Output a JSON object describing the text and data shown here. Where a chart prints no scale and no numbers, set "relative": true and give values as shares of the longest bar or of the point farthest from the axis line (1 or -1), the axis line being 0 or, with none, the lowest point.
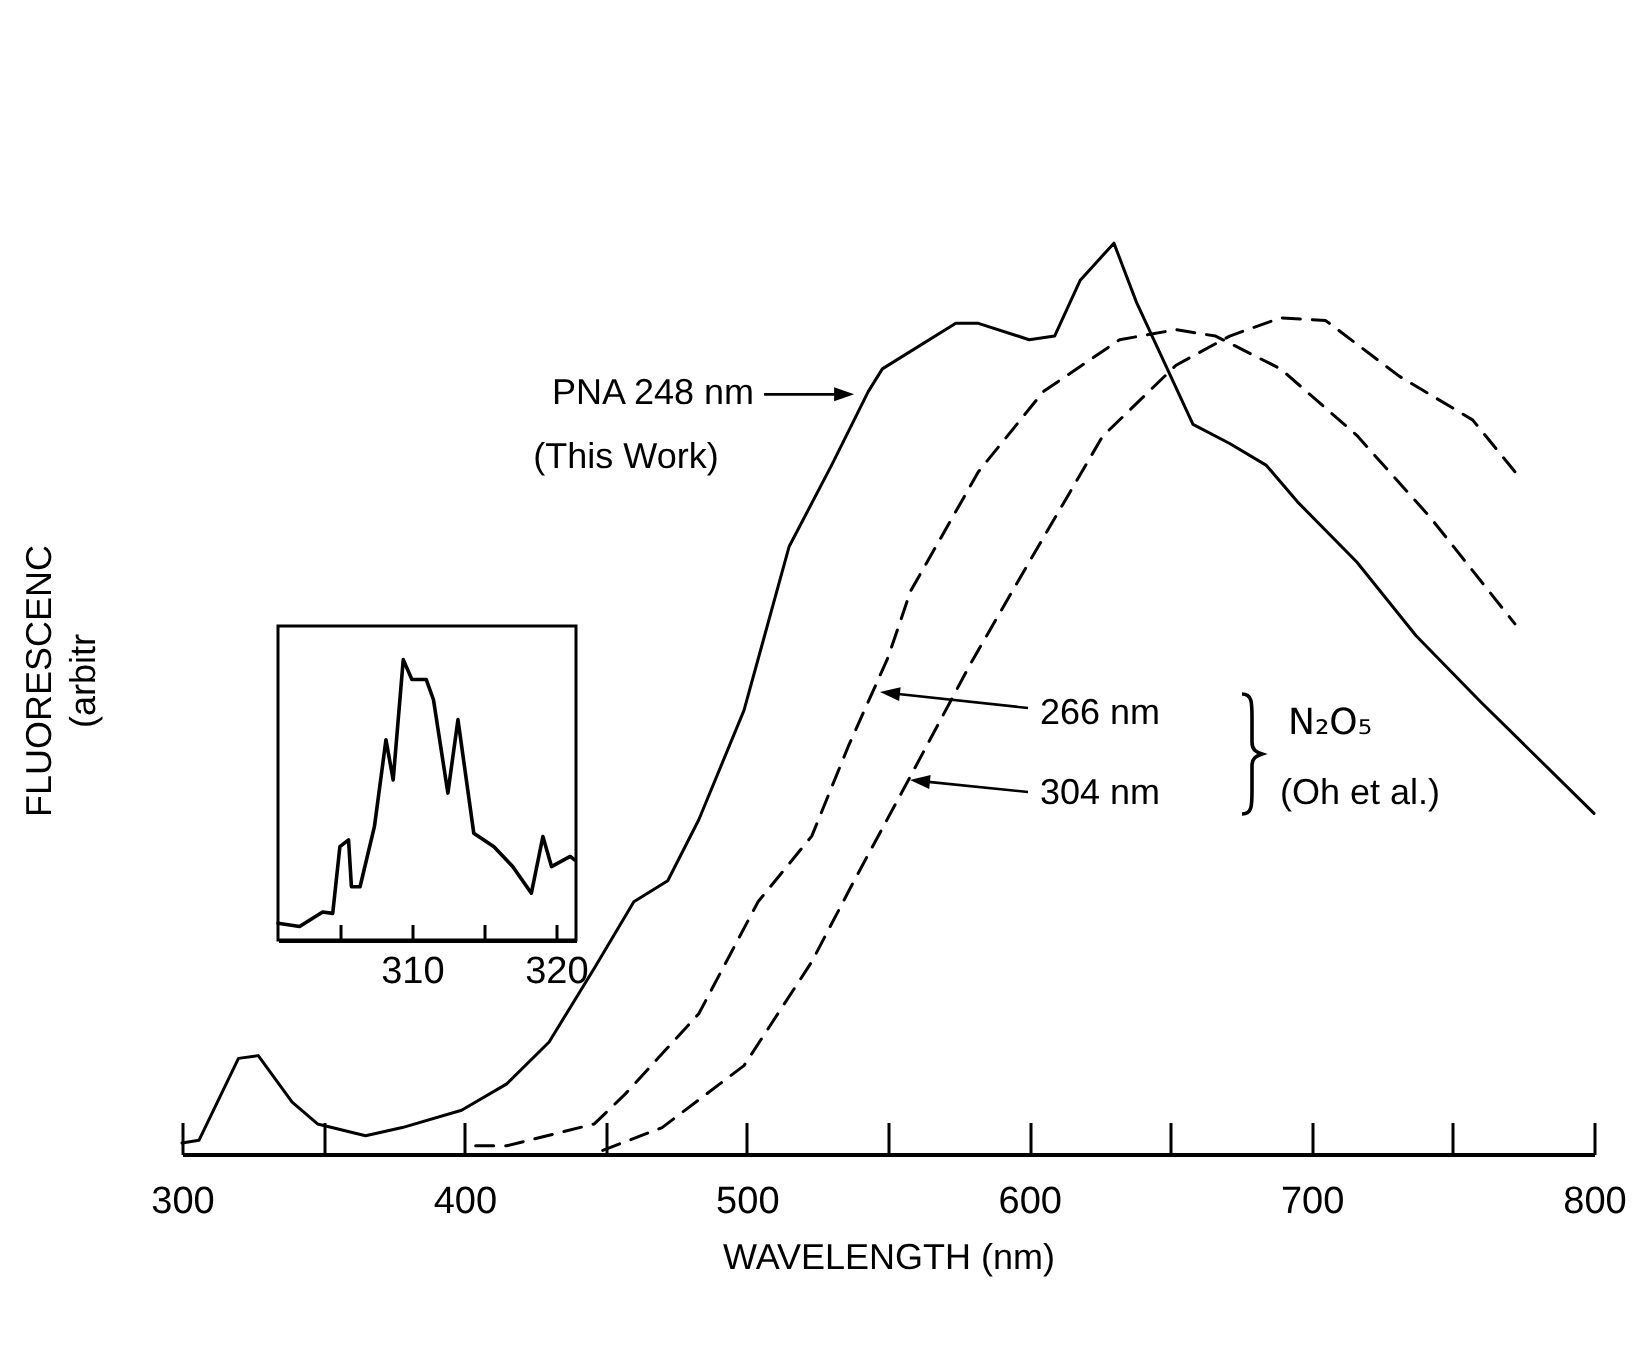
{
  "chart_data": [
    {
      "type": "line",
      "xlabel": "WAVELENGTH (nm)",
      "ylabel": "FLUORESCENC (arbitr",
      "relative": true,
      "xlim": [
        300,
        800
      ],
      "xticks": [
        300,
        {
          "value": 350,
          "label": null
        },
        400,
        {
          "value": 450,
          "label": null
        },
        500,
        {
          "value": 550,
          "label": null
        },
        600,
        {
          "value": 650,
          "label": null
        },
        700,
        {
          "value": 750,
          "label": null
        },
        800
      ],
      "series": [
        {
          "color": "#000000",
          "line_style": "solid",
          "x": [
            300,
            306,
            320,
            327,
            339,
            348,
            365,
            378,
            399,
            415,
            430,
            446,
            460,
            472,
            483,
            499,
            515,
            530,
            543,
            548,
            574,
            582,
            600,
            609,
            618,
            630,
            638,
            658,
            671,
            684,
            695,
            716,
            737,
            760,
            800
          ],
          "values": [
            0.012,
            0.015,
            0.105,
            0.108,
            0.057,
            0.033,
            0.02,
            0.029,
            0.048,
            0.077,
            0.123,
            0.204,
            0.277,
            0.3,
            0.367,
            0.487,
            0.667,
            0.756,
            0.837,
            0.862,
            0.912,
            0.912,
            0.894,
            0.898,
            0.959,
            1,
            0.935,
            0.801,
            0.78,
            0.756,
            0.716,
            0.65,
            0.569,
            0.496,
            0.374
          ]
        },
        {
          "color": "#000000",
          "line_style": "dashed",
          "x": [
            404,
            415,
            446,
            457,
            483,
            504,
            523,
            536,
            550,
            558,
            582,
            605,
            632,
            652,
            666,
            689,
            716,
            742,
            772
          ],
          "values": [
            0.009,
            0.009,
            0.033,
            0.066,
            0.154,
            0.277,
            0.349,
            0.448,
            0.545,
            0.618,
            0.749,
            0.837,
            0.894,
            0.905,
            0.898,
            0.862,
            0.789,
            0.699,
            0.582
          ]
        },
        {
          "color": "#000000",
          "line_style": "dashed",
          "x": [
            449,
            470,
            499,
            523,
            538,
            558,
            579,
            600,
            626,
            652,
            671,
            689,
            705,
            731,
            757,
            772
          ],
          "values": [
            0.004,
            0.029,
            0.097,
            0.211,
            0.3,
            0.415,
            0.537,
            0.65,
            0.788,
            0.866,
            0.898,
            0.918,
            0.915,
            0.854,
            0.806,
            0.749
          ]
        }
      ],
      "annotations": [
        {
          "text": "PNA 248 nm",
          "x": 538,
          "y": 0.834
        },
        "(This Work)",
        "266 nm",
        "304 nm",
        "N₂O₅",
        "(Oh et al.)"
      ]
    },
    {
      "type": "line",
      "relative": true,
      "xlim": [
        300.7,
        321.4
      ],
      "xticks": [
        {
          "value": 305,
          "label": null
        },
        310,
        {
          "value": 315,
          "label": null
        },
        320
      ],
      "series": [
        {
          "color": "#000000",
          "line_style": "solid",
          "x": [
            300.7,
            302.2,
            303.8,
            304.5,
            305,
            305.6,
            305.8,
            306.4,
            307.4,
            308.2,
            308.7,
            309.4,
            310,
            311,
            311.5,
            312.5,
            313.2,
            314.3,
            315.7,
            317,
            318.3,
            319.1,
            319.7,
            321,
            321.3
          ],
          "values": [
            0.06,
            0.048,
            0.1,
            0.095,
            0.333,
            0.357,
            0.19,
            0.19,
            0.405,
            0.714,
            0.571,
            1,
            0.929,
            0.929,
            0.857,
            0.524,
            0.786,
            0.381,
            0.333,
            0.262,
            0.167,
            0.369,
            0.262,
            0.298,
            0.286
          ]
        }
      ]
    }
  ]
}
